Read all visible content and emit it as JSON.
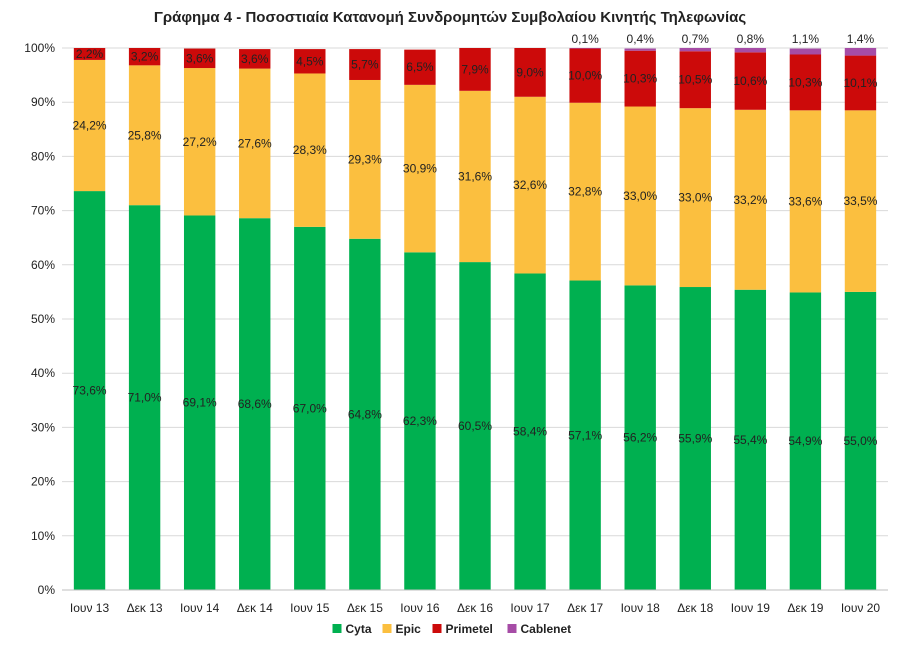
{
  "chart_data": {
    "type": "bar",
    "stacked": true,
    "title": "Γράφημα 4 - Ποσοστιαία Κατανομή Συνδρομητών Συμβολαίου Κινητής Τηλεφωνίας",
    "xlabel": "",
    "ylabel": "",
    "ylim": [
      0,
      100
    ],
    "yticks": [
      "0%",
      "10%",
      "20%",
      "30%",
      "40%",
      "50%",
      "60%",
      "70%",
      "80%",
      "90%",
      "100%"
    ],
    "categories": [
      "Ιουν 13",
      "Δεκ 13",
      "Ιουν 14",
      "Δεκ 14",
      "Ιουν 15",
      "Δεκ 15",
      "Ιουν 16",
      "Δεκ 16",
      "Ιουν 17",
      "Δεκ 17",
      "Ιουν 18",
      "Δεκ 18",
      "Ιουν 19",
      "Δεκ 19",
      "Ιουν 20"
    ],
    "legend_position": "bottom",
    "grid": true,
    "series": [
      {
        "name": "Cyta",
        "color": "#00b050",
        "values": [
          73.6,
          71.0,
          69.1,
          68.6,
          67.0,
          64.8,
          62.3,
          60.5,
          58.4,
          57.1,
          56.2,
          55.9,
          55.4,
          54.9,
          55.0
        ],
        "labels": [
          "73,6%",
          "71,0%",
          "69,1%",
          "68,6%",
          "67,0%",
          "64,8%",
          "62,3%",
          "60,5%",
          "58,4%",
          "57,1%",
          "56,2%",
          "55,9%",
          "55,4%",
          "54,9%",
          "55,0%"
        ]
      },
      {
        "name": "Epic",
        "color": "#fbbf3f",
        "values": [
          24.2,
          25.8,
          27.2,
          27.6,
          28.3,
          29.3,
          30.9,
          31.6,
          32.6,
          32.8,
          33.0,
          33.0,
          33.2,
          33.6,
          33.5
        ],
        "labels": [
          "24,2%",
          "25,8%",
          "27,2%",
          "27,6%",
          "28,3%",
          "29,3%",
          "30,9%",
          "31,6%",
          "32,6%",
          "32,8%",
          "33,0%",
          "33,0%",
          "33,2%",
          "33,6%",
          "33,5%"
        ]
      },
      {
        "name": "Primetel",
        "color": "#cc0a0a",
        "values": [
          2.2,
          3.2,
          3.6,
          3.6,
          4.5,
          5.7,
          6.5,
          7.9,
          9.0,
          10.0,
          10.3,
          10.5,
          10.6,
          10.3,
          10.1
        ],
        "labels": [
          "2,2%",
          "3,2%",
          "3,6%",
          "3,6%",
          "4,5%",
          "5,7%",
          "6,5%",
          "7,9%",
          "9,0%",
          "10,0%",
          "10,3%",
          "10,5%",
          "10,6%",
          "10,3%",
          "10,1%"
        ]
      },
      {
        "name": "Cablenet",
        "color": "#a64ca6",
        "values": [
          0,
          0,
          0,
          0,
          0,
          0,
          0,
          0,
          0,
          0.1,
          0.4,
          0.7,
          0.8,
          1.1,
          1.4
        ],
        "labels": [
          "",
          "",
          "",
          "",
          "",
          "",
          "",
          "",
          "",
          "0,1%",
          "0,4%",
          "0,7%",
          "0,8%",
          "1,1%",
          "1,4%"
        ]
      }
    ]
  }
}
